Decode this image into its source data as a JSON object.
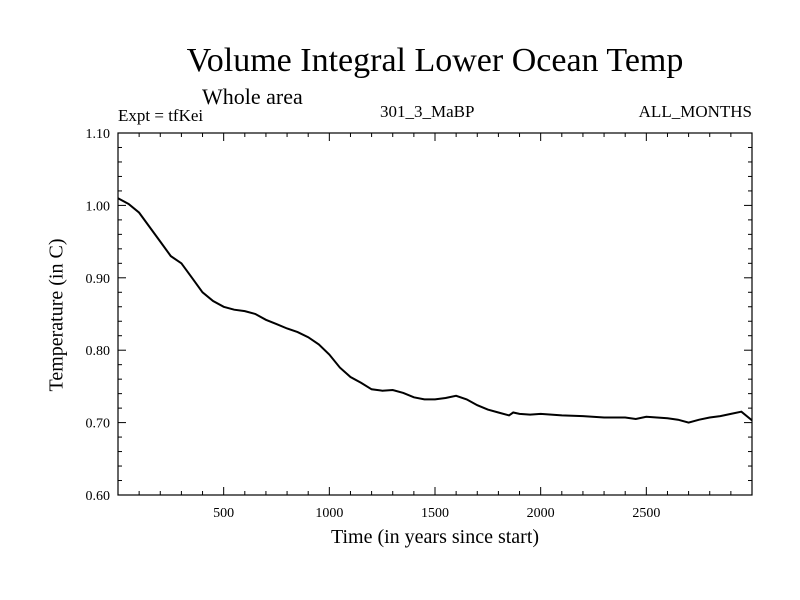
{
  "chart_data": {
    "type": "line",
    "title": "Volume Integral Lower Ocean Temp",
    "subtitle": "Whole area",
    "experiment": "Expt = tfKei",
    "run_label": "301_3_MaBP",
    "months_label": "ALL_MONTHS",
    "xlabel": "Time (in years since start)",
    "ylabel": "Temperature (in C)",
    "xlim": [
      0,
      3000
    ],
    "ylim": [
      0.6,
      1.1
    ],
    "xticks": [
      500,
      1000,
      1500,
      2000,
      2500
    ],
    "xtick_labels": [
      "500",
      "1000",
      "1500",
      "2000",
      "2500"
    ],
    "yticks": [
      0.6,
      0.7,
      0.8,
      0.9,
      1.0,
      1.1
    ],
    "ytick_labels": [
      "0.60",
      "0.70",
      "0.80",
      "0.90",
      "1.00",
      "1.10"
    ],
    "grid": false,
    "series": [
      {
        "color": "#000000",
        "x": [
          0,
          50,
          100,
          150,
          200,
          250,
          300,
          350,
          400,
          450,
          500,
          550,
          600,
          650,
          700,
          750,
          800,
          850,
          900,
          950,
          1000,
          1050,
          1100,
          1150,
          1200,
          1250,
          1300,
          1350,
          1400,
          1450,
          1500,
          1550,
          1600,
          1650,
          1700,
          1750,
          1800,
          1850,
          1870,
          1900,
          1950,
          2000,
          2100,
          2200,
          2300,
          2400,
          2450,
          2500,
          2550,
          2600,
          2650,
          2700,
          2750,
          2800,
          2850,
          2900,
          2950,
          3000
        ],
        "y": [
          1.01,
          1.002,
          0.99,
          0.97,
          0.95,
          0.93,
          0.92,
          0.9,
          0.88,
          0.868,
          0.86,
          0.856,
          0.854,
          0.85,
          0.842,
          0.836,
          0.83,
          0.825,
          0.818,
          0.808,
          0.794,
          0.776,
          0.763,
          0.755,
          0.746,
          0.744,
          0.745,
          0.741,
          0.735,
          0.732,
          0.732,
          0.734,
          0.737,
          0.732,
          0.724,
          0.718,
          0.714,
          0.71,
          0.714,
          0.712,
          0.711,
          0.712,
          0.71,
          0.709,
          0.707,
          0.707,
          0.705,
          0.708,
          0.707,
          0.706,
          0.704,
          0.7,
          0.704,
          0.707,
          0.709,
          0.712,
          0.715,
          0.703
        ]
      }
    ]
  }
}
